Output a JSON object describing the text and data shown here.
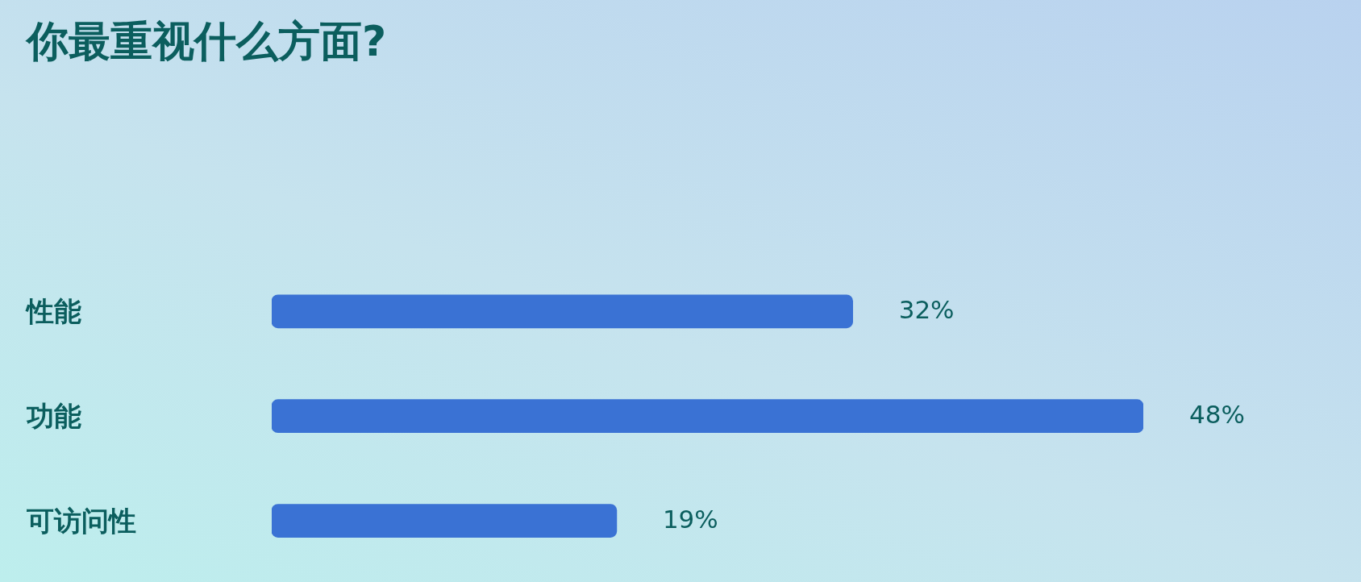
{
  "chart_data": {
    "type": "bar",
    "orientation": "horizontal",
    "title": "你最重视什么方面?",
    "categories": [
      "性能",
      "功能",
      "可访问性"
    ],
    "values": [
      32,
      48,
      19
    ],
    "value_labels": [
      "32%",
      "48%",
      "19%"
    ],
    "color": "#3a72d4",
    "tick_labels": "y"
  }
}
